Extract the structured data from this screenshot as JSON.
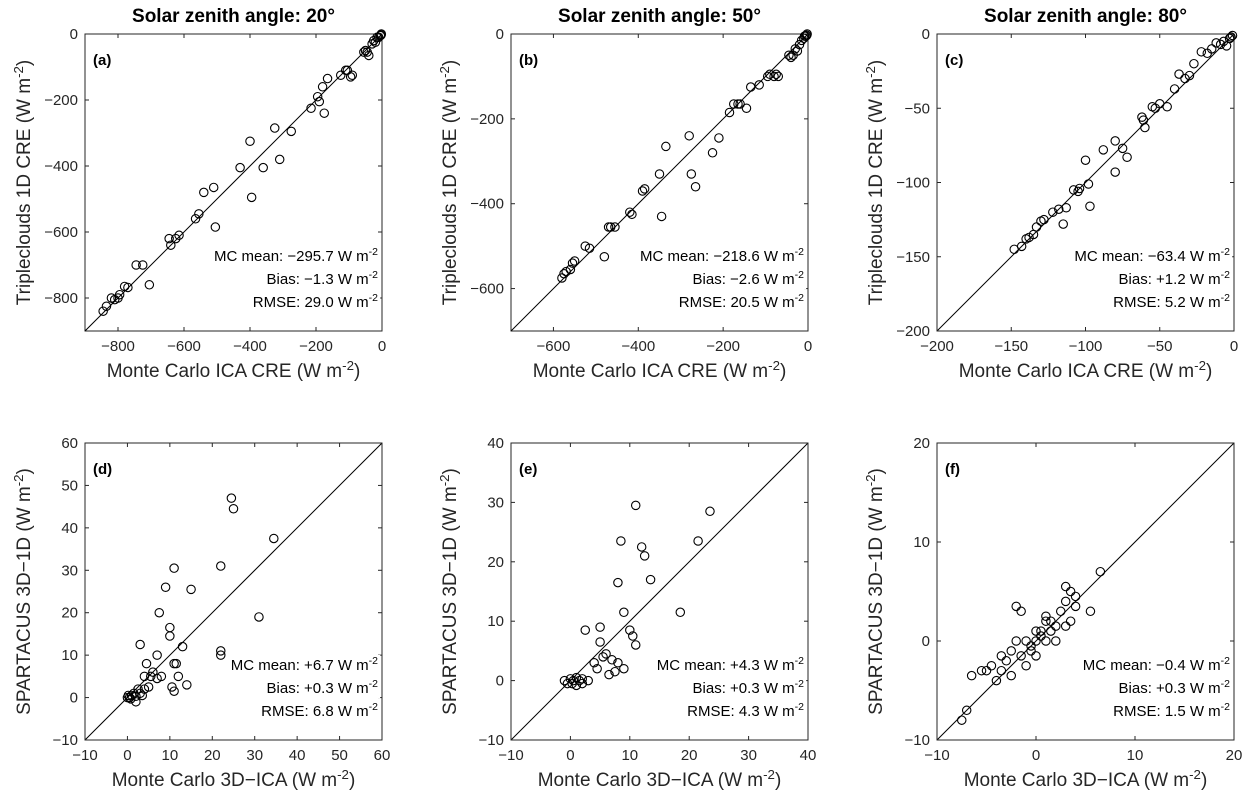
{
  "chart_data": [
    {
      "type": "scatter",
      "panel_label": "(a)",
      "title": "Solar zenith angle: 20°",
      "xlabel": "Monte Carlo ICA CRE (W m",
      "xlabel_unit_tail": ")",
      "ylabel": "Tripleclouds 1D CRE (W m",
      "ylabel_unit_tail": ")",
      "unit_exponent": "-2",
      "xlim": [
        -900,
        0
      ],
      "ylim": [
        -900,
        0
      ],
      "xticks": [
        -800,
        -600,
        -400,
        -200,
        0
      ],
      "yticks": [
        -800,
        -600,
        -400,
        -200,
        0
      ],
      "one_to_one_line": true,
      "stats": [
        "MC mean: −295.7 W m",
        "Bias: −1.3 W m",
        "RMSE: 29.0 W m"
      ],
      "stats_exponent": "-2",
      "points": [
        [
          -845,
          -840
        ],
        [
          -835,
          -825
        ],
        [
          -820,
          -800
        ],
        [
          -810,
          -805
        ],
        [
          -800,
          -800
        ],
        [
          -795,
          -790
        ],
        [
          -780,
          -765
        ],
        [
          -770,
          -768
        ],
        [
          -745,
          -700
        ],
        [
          -725,
          -700
        ],
        [
          -705,
          -760
        ],
        [
          -645,
          -620
        ],
        [
          -640,
          -640
        ],
        [
          -625,
          -620
        ],
        [
          -615,
          -610
        ],
        [
          -565,
          -560
        ],
        [
          -555,
          -545
        ],
        [
          -540,
          -480
        ],
        [
          -510,
          -465
        ],
        [
          -505,
          -585
        ],
        [
          -430,
          -405
        ],
        [
          -400,
          -325
        ],
        [
          -395,
          -495
        ],
        [
          -360,
          -405
        ],
        [
          -325,
          -285
        ],
        [
          -310,
          -380
        ],
        [
          -275,
          -295
        ],
        [
          -215,
          -225
        ],
        [
          -195,
          -190
        ],
        [
          -190,
          -205
        ],
        [
          -180,
          -160
        ],
        [
          -175,
          -240
        ],
        [
          -165,
          -135
        ],
        [
          -125,
          -125
        ],
        [
          -110,
          -110
        ],
        [
          -105,
          -110
        ],
        [
          -95,
          -130
        ],
        [
          -90,
          -125
        ],
        [
          -55,
          -55
        ],
        [
          -50,
          -50
        ],
        [
          -45,
          -55
        ],
        [
          -40,
          -65
        ],
        [
          -30,
          -30
        ],
        [
          -25,
          -20
        ],
        [
          -20,
          -25
        ],
        [
          -15,
          -10
        ],
        [
          -10,
          -10
        ],
        [
          -5,
          -5
        ],
        [
          -3,
          -3
        ],
        [
          -2,
          0
        ]
      ]
    },
    {
      "type": "scatter",
      "panel_label": "(b)",
      "title": "Solar zenith angle: 50°",
      "xlabel": "Monte Carlo ICA CRE (W m",
      "xlabel_unit_tail": ")",
      "ylabel": "Tripleclouds 1D CRE (W m",
      "ylabel_unit_tail": ")",
      "unit_exponent": "-2",
      "xlim": [
        -700,
        0
      ],
      "ylim": [
        -700,
        0
      ],
      "xticks": [
        -600,
        -400,
        -200,
        0
      ],
      "yticks": [
        -600,
        -400,
        -200,
        0
      ],
      "one_to_one_line": true,
      "stats": [
        "MC mean: −218.6 W m",
        "Bias: −2.6 W m",
        "RMSE: 20.5 W m"
      ],
      "stats_exponent": "-2",
      "points": [
        [
          -580,
          -575
        ],
        [
          -575,
          -565
        ],
        [
          -570,
          -560
        ],
        [
          -560,
          -555
        ],
        [
          -555,
          -540
        ],
        [
          -550,
          -535
        ],
        [
          -525,
          -500
        ],
        [
          -515,
          -505
        ],
        [
          -480,
          -525
        ],
        [
          -470,
          -455
        ],
        [
          -465,
          -455
        ],
        [
          -455,
          -455
        ],
        [
          -420,
          -420
        ],
        [
          -415,
          -425
        ],
        [
          -390,
          -370
        ],
        [
          -385,
          -365
        ],
        [
          -350,
          -330
        ],
        [
          -345,
          -430
        ],
        [
          -335,
          -265
        ],
        [
          -280,
          -240
        ],
        [
          -275,
          -330
        ],
        [
          -265,
          -360
        ],
        [
          -225,
          -280
        ],
        [
          -210,
          -245
        ],
        [
          -185,
          -185
        ],
        [
          -175,
          -165
        ],
        [
          -165,
          -165
        ],
        [
          -160,
          -165
        ],
        [
          -145,
          -175
        ],
        [
          -135,
          -125
        ],
        [
          -115,
          -120
        ],
        [
          -95,
          -100
        ],
        [
          -90,
          -95
        ],
        [
          -80,
          -100
        ],
        [
          -75,
          -95
        ],
        [
          -70,
          -100
        ],
        [
          -45,
          -50
        ],
        [
          -40,
          -55
        ],
        [
          -35,
          -50
        ],
        [
          -30,
          -35
        ],
        [
          -25,
          -40
        ],
        [
          -20,
          -25
        ],
        [
          -15,
          -15
        ],
        [
          -10,
          -10
        ],
        [
          -8,
          -5
        ],
        [
          -5,
          -5
        ],
        [
          -3,
          -3
        ],
        [
          -2,
          0
        ]
      ]
    },
    {
      "type": "scatter",
      "panel_label": "(c)",
      "title": "Solar zenith angle: 80°",
      "xlabel": "Monte Carlo ICA CRE (W m",
      "xlabel_unit_tail": ")",
      "ylabel": "Tripleclouds 1D CRE (W m",
      "ylabel_unit_tail": ")",
      "unit_exponent": "-2",
      "xlim": [
        -200,
        0
      ],
      "ylim": [
        -200,
        0
      ],
      "xticks": [
        -200,
        -150,
        -100,
        -50,
        0
      ],
      "yticks": [
        -200,
        -150,
        -100,
        -50,
        0
      ],
      "one_to_one_line": true,
      "stats": [
        "MC mean: −63.4 W m",
        "Bias: +1.2 W m",
        "RMSE: 5.2 W m"
      ],
      "stats_exponent": "-2",
      "points": [
        [
          -148,
          -145
        ],
        [
          -143,
          -143
        ],
        [
          -140,
          -138
        ],
        [
          -138,
          -137
        ],
        [
          -135,
          -135
        ],
        [
          -133,
          -130
        ],
        [
          -130,
          -126
        ],
        [
          -128,
          -125
        ],
        [
          -122,
          -120
        ],
        [
          -118,
          -118
        ],
        [
          -115,
          -128
        ],
        [
          -113,
          -117
        ],
        [
          -108,
          -105
        ],
        [
          -105,
          -106
        ],
        [
          -104,
          -104
        ],
        [
          -100,
          -85
        ],
        [
          -98,
          -101
        ],
        [
          -97,
          -116
        ],
        [
          -88,
          -78
        ],
        [
          -80,
          -72
        ],
        [
          -80,
          -93
        ],
        [
          -75,
          -77
        ],
        [
          -72,
          -83
        ],
        [
          -62,
          -56
        ],
        [
          -61,
          -58
        ],
        [
          -60,
          -63
        ],
        [
          -55,
          -49
        ],
        [
          -53,
          -50
        ],
        [
          -50,
          -47
        ],
        [
          -45,
          -49
        ],
        [
          -40,
          -37
        ],
        [
          -37,
          -27
        ],
        [
          -33,
          -30
        ],
        [
          -30,
          -28
        ],
        [
          -27,
          -20
        ],
        [
          -22,
          -12
        ],
        [
          -18,
          -13
        ],
        [
          -15,
          -10
        ],
        [
          -12,
          -6
        ],
        [
          -9,
          -7
        ],
        [
          -7,
          -5
        ],
        [
          -5,
          -8
        ],
        [
          -3,
          -3
        ],
        [
          -2,
          -2
        ],
        [
          -1,
          -1
        ]
      ]
    },
    {
      "type": "scatter",
      "panel_label": "(d)",
      "title": "",
      "xlabel": "Monte Carlo 3D−ICA (W m",
      "xlabel_unit_tail": ")",
      "ylabel": "SPARTACUS 3D−1D (W m",
      "ylabel_unit_tail": ")",
      "unit_exponent": "-2",
      "xlim": [
        -10,
        60
      ],
      "ylim": [
        -10,
        60
      ],
      "xticks": [
        -10,
        0,
        10,
        20,
        30,
        40,
        50,
        60
      ],
      "yticks": [
        -10,
        0,
        10,
        20,
        30,
        40,
        50,
        60
      ],
      "one_to_one_line": true,
      "stats": [
        "MC mean: +6.7 W m",
        "Bias: +0.3 W m",
        "RMSE: 6.8 W m"
      ],
      "stats_exponent": "-2",
      "points": [
        [
          0,
          0
        ],
        [
          0.2,
          0.5
        ],
        [
          0.5,
          0
        ],
        [
          0.8,
          -0.3
        ],
        [
          1,
          0.5
        ],
        [
          1.5,
          1
        ],
        [
          2,
          0.3
        ],
        [
          2,
          -1
        ],
        [
          2.5,
          2
        ],
        [
          3,
          1
        ],
        [
          3,
          12.5
        ],
        [
          3.5,
          0.5
        ],
        [
          4,
          2
        ],
        [
          4,
          5
        ],
        [
          4.5,
          8
        ],
        [
          5,
          2.5
        ],
        [
          5.5,
          5
        ],
        [
          6,
          6
        ],
        [
          7,
          4.5
        ],
        [
          7,
          10
        ],
        [
          7.5,
          20
        ],
        [
          8,
          5
        ],
        [
          9,
          26
        ],
        [
          10,
          16.5
        ],
        [
          10,
          14.5
        ],
        [
          10.5,
          2.5
        ],
        [
          11,
          30.5
        ],
        [
          11,
          8
        ],
        [
          11,
          1.5
        ],
        [
          11.5,
          8
        ],
        [
          12,
          5
        ],
        [
          13,
          12
        ],
        [
          14,
          3
        ],
        [
          15,
          25.5
        ],
        [
          22,
          31
        ],
        [
          22,
          11
        ],
        [
          22,
          10
        ],
        [
          24.5,
          47
        ],
        [
          25,
          44.5
        ],
        [
          31,
          19
        ],
        [
          34.5,
          37.5
        ]
      ]
    },
    {
      "type": "scatter",
      "panel_label": "(e)",
      "title": "",
      "xlabel": "Monte Carlo 3D−ICA (W m",
      "xlabel_unit_tail": ")",
      "ylabel": "SPARTACUS 3D−1D (W m",
      "ylabel_unit_tail": ")",
      "unit_exponent": "-2",
      "xlim": [
        -10,
        40
      ],
      "ylim": [
        -10,
        40
      ],
      "xticks": [
        -10,
        0,
        10,
        20,
        30,
        40
      ],
      "yticks": [
        -10,
        0,
        10,
        20,
        30,
        40
      ],
      "one_to_one_line": true,
      "stats": [
        "MC mean: +4.3 W m",
        "Bias: +0.3 W m",
        "RMSE: 4.3 W m"
      ],
      "stats_exponent": "-2",
      "points": [
        [
          -1,
          0
        ],
        [
          -0.5,
          -0.5
        ],
        [
          0,
          0.3
        ],
        [
          0.3,
          -0.5
        ],
        [
          0.5,
          0
        ],
        [
          1,
          0.5
        ],
        [
          1,
          -0.8
        ],
        [
          1.5,
          0
        ],
        [
          2,
          0.3
        ],
        [
          2,
          -0.5
        ],
        [
          2.5,
          8.5
        ],
        [
          3,
          0
        ],
        [
          4,
          3
        ],
        [
          4.5,
          2
        ],
        [
          5,
          9
        ],
        [
          5,
          6.5
        ],
        [
          5.5,
          4
        ],
        [
          6,
          4.5
        ],
        [
          6.5,
          1
        ],
        [
          7,
          3.5
        ],
        [
          7.5,
          1.5
        ],
        [
          8,
          16.5
        ],
        [
          8,
          3
        ],
        [
          8.5,
          23.5
        ],
        [
          9,
          11.5
        ],
        [
          9,
          2
        ],
        [
          10,
          8.5
        ],
        [
          10.5,
          7.5
        ],
        [
          11,
          29.5
        ],
        [
          11,
          6
        ],
        [
          12,
          22.5
        ],
        [
          12.5,
          21
        ],
        [
          13.5,
          17
        ],
        [
          18.5,
          11.5
        ],
        [
          21.5,
          23.5
        ],
        [
          23.5,
          28.5
        ]
      ]
    },
    {
      "type": "scatter",
      "panel_label": "(f)",
      "title": "",
      "xlabel": "Monte Carlo 3D−ICA (W m",
      "xlabel_unit_tail": ")",
      "ylabel": "SPARTACUS 3D−1D (W m",
      "ylabel_unit_tail": ")",
      "unit_exponent": "-2",
      "xlim": [
        -10,
        20
      ],
      "ylim": [
        -10,
        20
      ],
      "xticks": [
        -10,
        0,
        10,
        20
      ],
      "yticks": [
        -10,
        0,
        10,
        20
      ],
      "one_to_one_line": true,
      "stats": [
        "MC mean: −0.4 W m",
        "Bias: +0.3 W m",
        "RMSE: 1.5 W m"
      ],
      "stats_exponent": "-2",
      "points": [
        [
          -7.5,
          -8
        ],
        [
          -7,
          -7
        ],
        [
          -6.5,
          -3.5
        ],
        [
          -5.5,
          -3
        ],
        [
          -5,
          -3
        ],
        [
          -4.5,
          -2.5
        ],
        [
          -4,
          -4
        ],
        [
          -3.5,
          -3
        ],
        [
          -3.5,
          -1.5
        ],
        [
          -3,
          -2
        ],
        [
          -2.5,
          -3.5
        ],
        [
          -2.5,
          -1
        ],
        [
          -2,
          0
        ],
        [
          -2,
          3.5
        ],
        [
          -1.5,
          -1.5
        ],
        [
          -1.5,
          3
        ],
        [
          -1,
          0
        ],
        [
          -1,
          -2.5
        ],
        [
          -0.5,
          -0.5
        ],
        [
          -0.5,
          -1
        ],
        [
          0,
          0
        ],
        [
          0,
          1
        ],
        [
          0,
          -1.5
        ],
        [
          0.5,
          0.5
        ],
        [
          0.5,
          1
        ],
        [
          1,
          0
        ],
        [
          1,
          2
        ],
        [
          1,
          2.5
        ],
        [
          1.5,
          1
        ],
        [
          1.5,
          2
        ],
        [
          2,
          1.5
        ],
        [
          2,
          0
        ],
        [
          2.5,
          3
        ],
        [
          3,
          1.5
        ],
        [
          3,
          5.5
        ],
        [
          3,
          4
        ],
        [
          3.5,
          2
        ],
        [
          3.5,
          5
        ],
        [
          4,
          4.5
        ],
        [
          4,
          3.5
        ],
        [
          5.5,
          3
        ],
        [
          6.5,
          7
        ]
      ]
    }
  ]
}
